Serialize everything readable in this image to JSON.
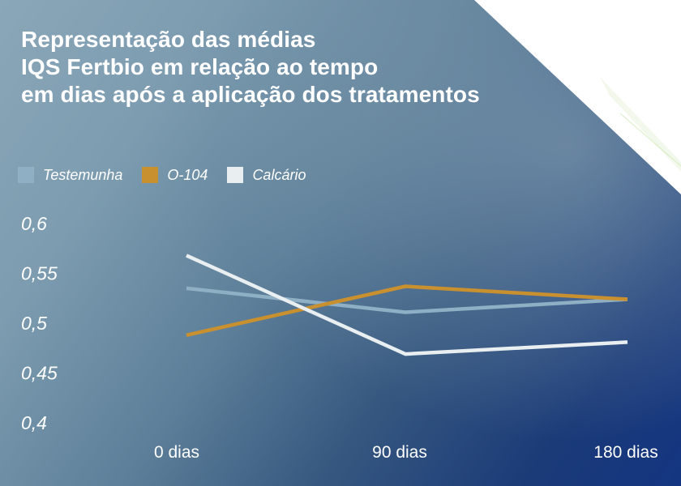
{
  "title_lines": [
    "Representação das médias",
    "IQS Fertbio em relação ao tempo",
    "em dias após a aplicação dos tratamentos"
  ],
  "chart_data": {
    "type": "line",
    "title": "Representação das médias IQS Fertbio em relação ao tempo em dias após a aplicação dos tratamentos",
    "categories": [
      "0 dias",
      "90 dias",
      "180 dias"
    ],
    "y_ticks": [
      "0,6",
      "0,55",
      "0,5",
      "0,45",
      "0,4"
    ],
    "ylim": [
      0.4,
      0.6
    ],
    "grid": false,
    "legend_position": "top-left",
    "series": [
      {
        "name": "Testemunha",
        "values": [
          0.535,
          0.511,
          0.524
        ],
        "color": "#8fb0c4"
      },
      {
        "name": "O-104",
        "values": [
          0.488,
          0.537,
          0.524
        ],
        "color": "#c9902f"
      },
      {
        "name": "Calcário",
        "values": [
          0.568,
          0.469,
          0.481
        ],
        "color": "#e9eef1"
      }
    ]
  }
}
